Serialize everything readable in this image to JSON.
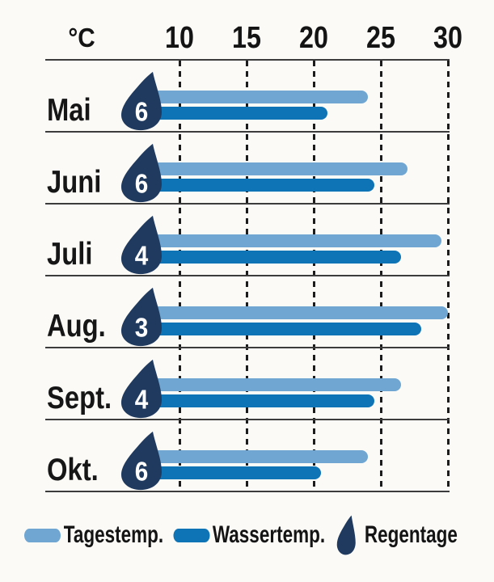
{
  "axis": {
    "unit_label": "°C",
    "tick_labels": [
      "10",
      "15",
      "20",
      "25",
      "30"
    ]
  },
  "chart_data": {
    "type": "bar",
    "orientation": "horizontal",
    "title": "",
    "xlabel": "°C",
    "xlim": [
      0,
      30
    ],
    "xticks": [
      10,
      15,
      20,
      25,
      30
    ],
    "grid": "dashed-vertical",
    "categories": [
      "Mai",
      "Juni",
      "Juli",
      "Aug.",
      "Sept.",
      "Okt."
    ],
    "series": [
      {
        "name": "Tagestemp.",
        "values": [
          24,
          27,
          29.5,
          30,
          26.5,
          24
        ]
      },
      {
        "name": "Wassertemp.",
        "values": [
          21,
          24.5,
          26.5,
          28,
          24.5,
          20.5
        ]
      }
    ],
    "rain_days": {
      "name": "Regentage",
      "values": [
        6,
        6,
        4,
        3,
        4,
        6
      ]
    },
    "legend_position": "bottom"
  },
  "legend": {
    "items": [
      {
        "label": "Tagestemp.",
        "swatch": "pill-light"
      },
      {
        "label": "Wassertemp.",
        "swatch": "pill-dark"
      },
      {
        "label": "Regentage",
        "swatch": "drop"
      }
    ]
  },
  "colors": {
    "day_bar": "#6fa6d2",
    "water_bar": "#0f74b5",
    "rain_drop": "#1f3a5e",
    "line": "#3c3c3c",
    "text": "#141414",
    "background": "#fbfaf7"
  }
}
